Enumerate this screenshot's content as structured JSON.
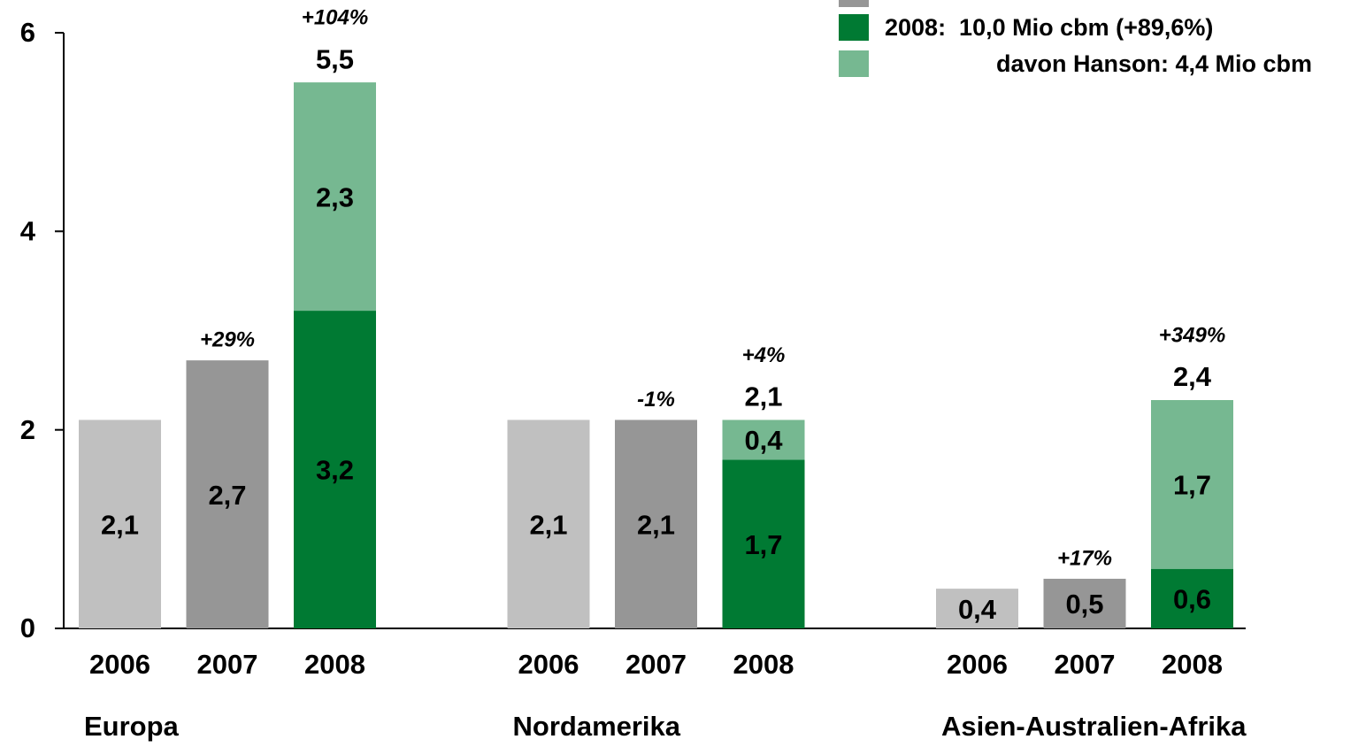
{
  "chart_data": {
    "type": "bar",
    "categories": [
      "Europa",
      "Nordamerika",
      "Asien-Australien-Afrika"
    ],
    "bar_labels": [
      "2006",
      "2007",
      "2008"
    ],
    "series": [
      {
        "color": "#c0c0c0",
        "values": [
          2.1,
          2.1,
          0.4
        ],
        "value_labels": [
          "2,1",
          "2,1",
          "0,4"
        ]
      },
      {
        "color": "#969696",
        "values": [
          2.7,
          2.1,
          0.5
        ],
        "value_labels": [
          "2,7",
          "2,1",
          "0,5"
        ],
        "growth_labels": [
          "+29%",
          "-1%",
          "+17%"
        ]
      },
      {
        "name": "2008:  10,0 Mio cbm (+89,6%)",
        "color": "#007a33",
        "values": [
          3.2,
          1.7,
          0.6
        ],
        "value_labels": [
          "3,2",
          "1,7",
          "0,6"
        ],
        "stack": true
      },
      {
        "name": "davon Hanson: 4,4 Mio cbm",
        "color": "#76b891",
        "values": [
          2.3,
          0.4,
          1.7
        ],
        "value_labels": [
          "2,3",
          "0,4",
          "1,7"
        ],
        "stack": true
      }
    ],
    "totals": [
      5.5,
      2.1,
      2.4
    ],
    "total_labels": [
      "5,5",
      "2,1",
      "2,4"
    ],
    "total_growth_labels": [
      "+104%",
      "+4%",
      "+349%"
    ],
    "ylim": [
      0,
      6
    ],
    "yticks": [
      0,
      2,
      4,
      6
    ],
    "grid": false
  }
}
